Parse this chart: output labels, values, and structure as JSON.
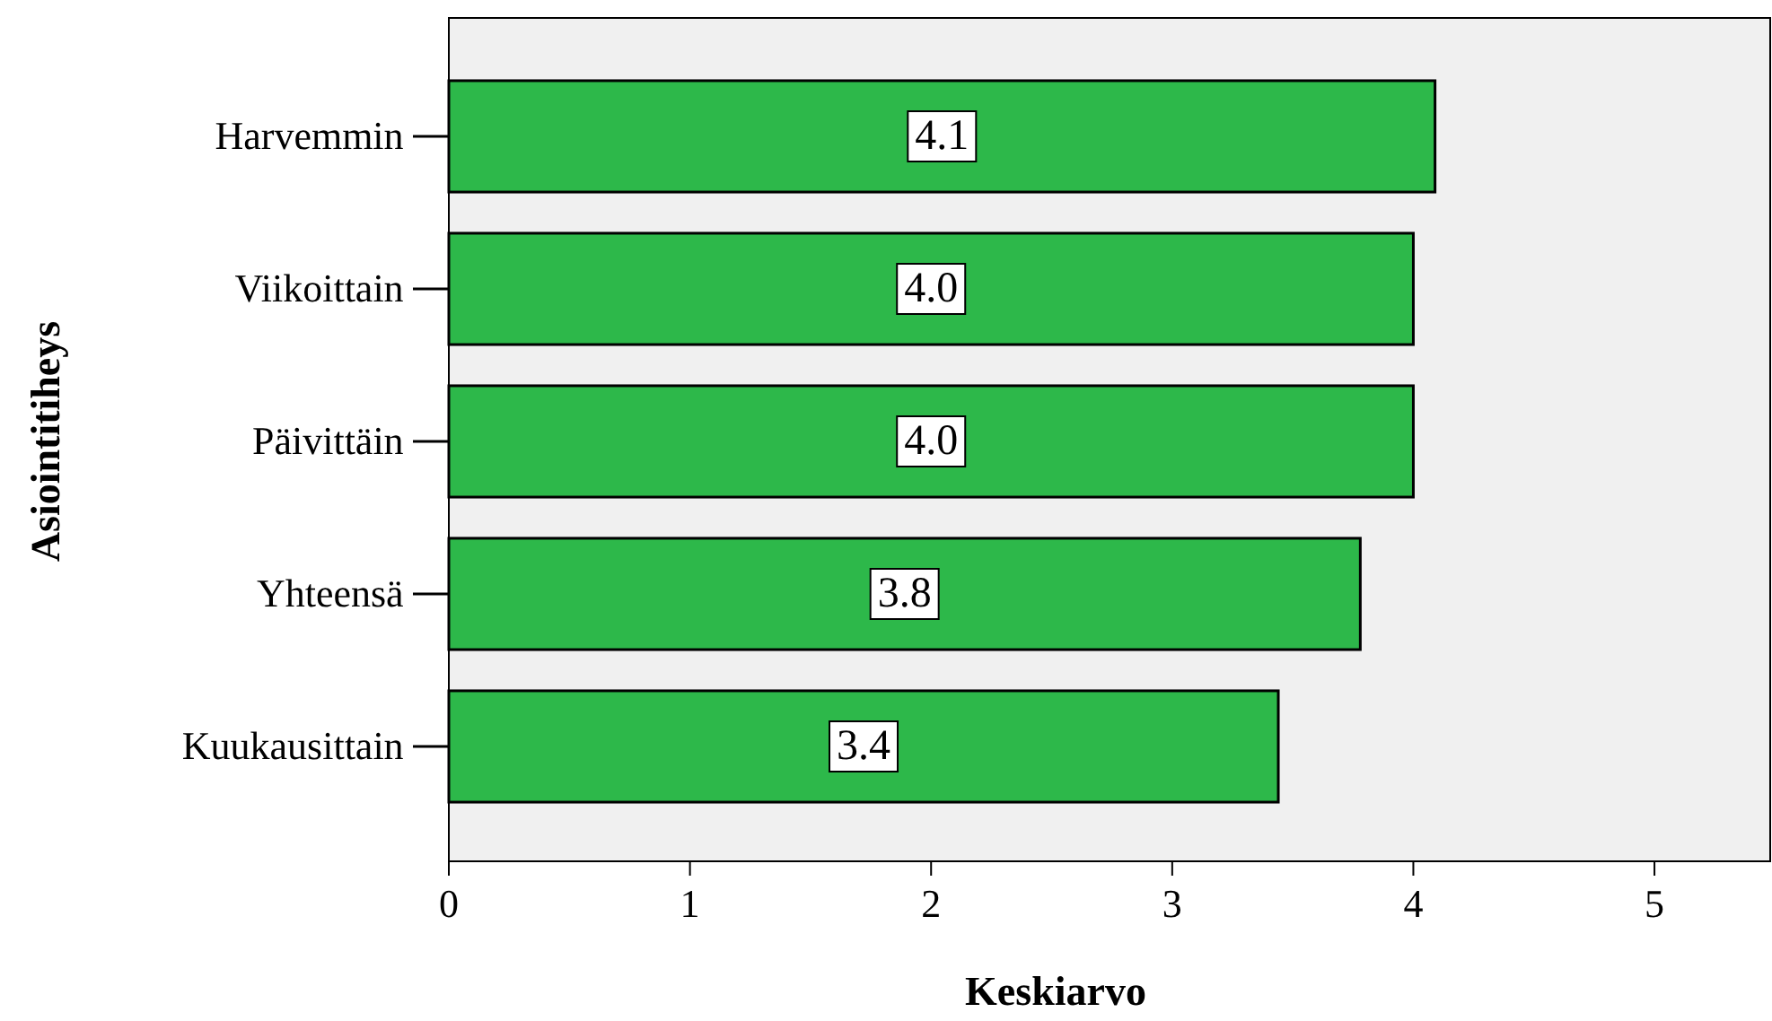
{
  "chart_data": {
    "type": "bar",
    "orientation": "horizontal",
    "xlabel": "Keskiarvo",
    "ylabel": "Asiointitiheys",
    "categories": [
      "Harvemmin",
      "Viikoittain",
      "Päivittäin",
      "Yhteensä",
      "Kuukausittain"
    ],
    "values": [
      4.09,
      4.0,
      4.0,
      3.78,
      3.44
    ],
    "value_labels": [
      "4.1",
      "4.0",
      "4.0",
      "3.8",
      "3.4"
    ],
    "color": "#2db84a",
    "xlim": [
      0,
      5.48
    ],
    "xticks": [
      0,
      1,
      2,
      3,
      4,
      5
    ],
    "grid": false
  }
}
